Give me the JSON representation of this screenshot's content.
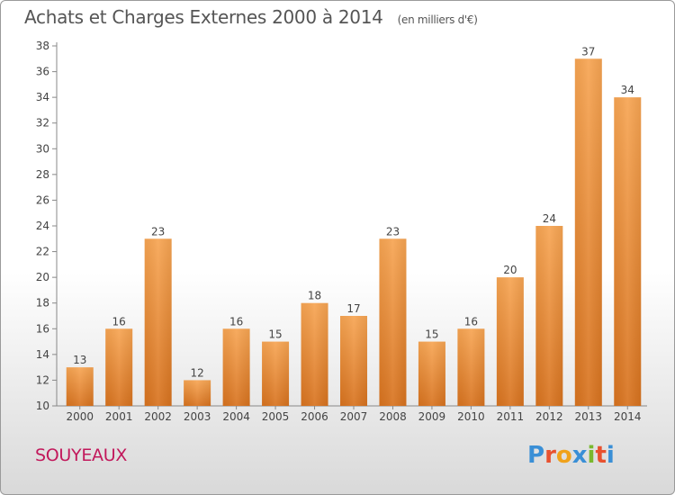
{
  "chart_data": {
    "type": "bar",
    "title": "Achats et Charges Externes 2000 à 2014",
    "subtitle": "(en milliers d'€)",
    "xlabel": "",
    "ylabel": "",
    "categories": [
      "2000",
      "2001",
      "2002",
      "2003",
      "2004",
      "2005",
      "2006",
      "2007",
      "2008",
      "2009",
      "2010",
      "2011",
      "2012",
      "2013",
      "2014"
    ],
    "values": [
      13,
      16,
      23,
      12,
      16,
      15,
      18,
      17,
      23,
      15,
      16,
      20,
      24,
      37,
      34
    ],
    "ylim": [
      10,
      38
    ],
    "yticks": [
      10,
      12,
      14,
      16,
      18,
      20,
      22,
      24,
      26,
      28,
      30,
      32,
      34,
      36,
      38
    ],
    "grid": false,
    "legend": "none",
    "bar_color": "#f0923a"
  },
  "commune": "SOUYEAUX",
  "logo": {
    "text": "Proxiti",
    "colors": [
      "#3a8fd6",
      "#e8512f",
      "#f0a21b",
      "#3a8fd6",
      "#7ab82e",
      "#e8512f",
      "#3a8fd6"
    ]
  }
}
